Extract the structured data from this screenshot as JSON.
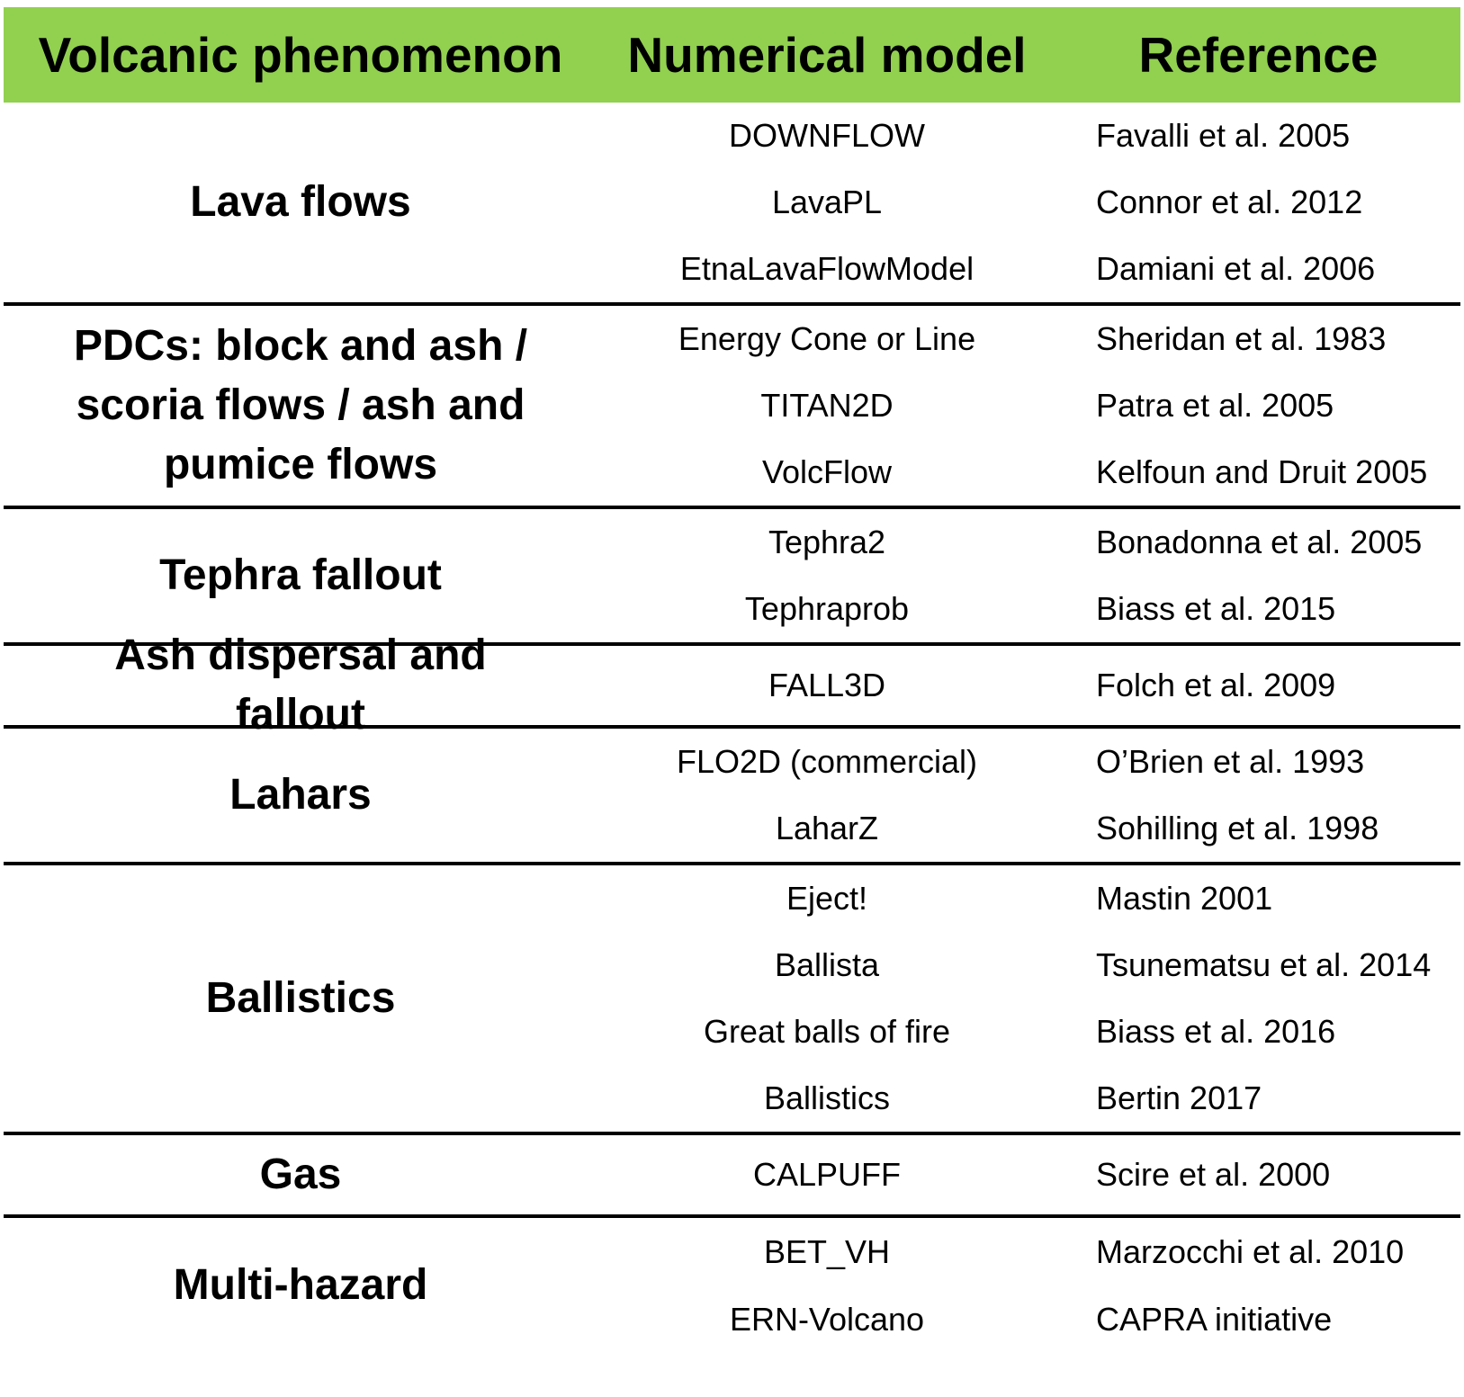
{
  "header": {
    "phenomenon": "Volcanic phenomenon",
    "model": "Numerical model",
    "reference": "Reference"
  },
  "colors": {
    "header_background": "#92d050",
    "divider": "#000000"
  },
  "groups": [
    {
      "phenomenon": "Lava flows",
      "rows": [
        {
          "model": "DOWNFLOW",
          "reference": "Favalli et al. 2005"
        },
        {
          "model": "LavaPL",
          "reference": "Connor et al. 2012"
        },
        {
          "model": "EtnaLavaFlowModel",
          "reference": "Damiani et al. 2006"
        }
      ]
    },
    {
      "phenomenon": "PDCs: block and ash / scoria flows / ash and pumice flows",
      "rows": [
        {
          "model": "Energy Cone or Line",
          "reference": "Sheridan et al. 1983"
        },
        {
          "model": "TITAN2D",
          "reference": "Patra et al. 2005"
        },
        {
          "model": "VolcFlow",
          "reference": "Kelfoun and Druit 2005"
        }
      ]
    },
    {
      "phenomenon": "Tephra fallout",
      "rows": [
        {
          "model": "Tephra2",
          "reference": "Bonadonna et al. 2005"
        },
        {
          "model": "Tephraprob",
          "reference": "Biass et al. 2015"
        }
      ]
    },
    {
      "phenomenon": "Ash dispersal and fallout",
      "rows": [
        {
          "model": "FALL3D",
          "reference": "Folch et al. 2009"
        }
      ]
    },
    {
      "phenomenon": "Lahars",
      "rows": [
        {
          "model": "FLO2D (commercial)",
          "reference": "O’Brien et al. 1993"
        },
        {
          "model": "LaharZ",
          "reference": "Sohilling et al. 1998"
        }
      ]
    },
    {
      "phenomenon": "Ballistics",
      "rows": [
        {
          "model": "Eject!",
          "reference": "Mastin 2001"
        },
        {
          "model": "Ballista",
          "reference": "Tsunematsu et al. 2014"
        },
        {
          "model": "Great balls of fire",
          "reference": "Biass et al. 2016"
        },
        {
          "model": "Ballistics",
          "reference": "Bertin 2017"
        }
      ]
    },
    {
      "phenomenon": "Gas",
      "rows": [
        {
          "model": "CALPUFF",
          "reference": "Scire et al. 2000"
        }
      ]
    },
    {
      "phenomenon": "Multi-hazard",
      "rows": [
        {
          "model": "BET_VH",
          "reference": "Marzocchi et al. 2010"
        },
        {
          "model": "ERN-Volcano",
          "reference": "CAPRA initiative"
        }
      ]
    }
  ]
}
